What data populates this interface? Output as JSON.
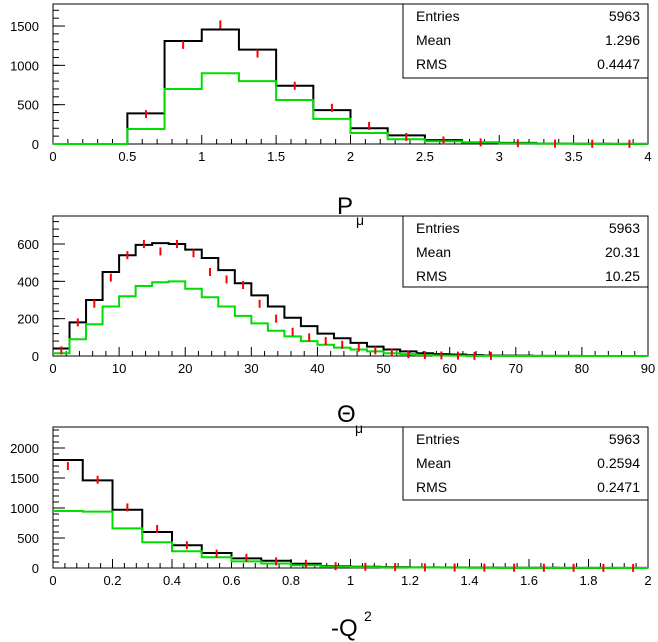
{
  "chart_data": [
    {
      "type": "histogram",
      "title": "",
      "xlabel": "P",
      "xlabel_sub": "μ",
      "xlabel_sup": "",
      "ylabel": "",
      "xlim": [
        0,
        4
      ],
      "ylim": [
        0,
        1780
      ],
      "xticks": [
        0,
        0.5,
        1,
        1.5,
        2,
        2.5,
        3,
        3.5,
        4
      ],
      "xtick_labels": [
        "0",
        "0.5",
        "1",
        "1.5",
        "2",
        "2.5",
        "3",
        "3.5",
        "4"
      ],
      "yticks": [
        0,
        500,
        1000,
        1500
      ],
      "ytick_labels": [
        "0",
        "500",
        "1000",
        "1500"
      ],
      "bin_edges": [
        0,
        0.25,
        0.5,
        0.75,
        1.0,
        1.25,
        1.5,
        1.75,
        2.0,
        2.25,
        2.5,
        2.75,
        3.0,
        3.25,
        3.5,
        3.75,
        4.0
      ],
      "series": [
        {
          "color": "#000000",
          "style": "step",
          "values": [
            0,
            0,
            390,
            1310,
            1455,
            1200,
            740,
            430,
            200,
            110,
            50,
            20,
            15,
            5,
            3,
            2
          ]
        },
        {
          "color": "#00dd00",
          "style": "step",
          "values": [
            0,
            0,
            190,
            700,
            900,
            800,
            560,
            320,
            140,
            60,
            35,
            20,
            10,
            5,
            2,
            1
          ]
        },
        {
          "color": "#ff0000",
          "style": "points",
          "values": [
            0,
            0,
            380,
            1260,
            1520,
            1150,
            740,
            460,
            230,
            90,
            45,
            20,
            10,
            5,
            3,
            2
          ]
        }
      ],
      "stats": {
        "entries_label": "Entries",
        "entries": "5963",
        "mean_label": "Mean",
        "mean": "1.296",
        "rms_label": "RMS",
        "rms": "0.4447"
      }
    },
    {
      "type": "histogram",
      "title": "",
      "xlabel": "Θ",
      "xlabel_sub": "μ",
      "xlabel_sup": "",
      "ylabel": "",
      "xlim": [
        0,
        90
      ],
      "ylim": [
        0,
        750
      ],
      "xticks": [
        0,
        10,
        20,
        30,
        40,
        50,
        60,
        70,
        80,
        90
      ],
      "xtick_labels": [
        "0",
        "10",
        "20",
        "30",
        "40",
        "50",
        "60",
        "70",
        "80",
        "90"
      ],
      "yticks": [
        0,
        200,
        400,
        600
      ],
      "ytick_labels": [
        "0",
        "200",
        "400",
        "600"
      ],
      "bin_edges": [
        0,
        2.5,
        5,
        7.5,
        10,
        12.5,
        15,
        17.5,
        20,
        22.5,
        25,
        27.5,
        30,
        32.5,
        35,
        37.5,
        40,
        42.5,
        45,
        47.5,
        50,
        52.5,
        55,
        57.5,
        60,
        62.5,
        65,
        67.5,
        70,
        72.5,
        75,
        77.5,
        80,
        82.5,
        85,
        87.5,
        90
      ],
      "series": [
        {
          "color": "#000000",
          "style": "step",
          "values": [
            40,
            180,
            300,
            450,
            540,
            595,
            605,
            600,
            570,
            525,
            460,
            390,
            325,
            265,
            205,
            160,
            120,
            95,
            70,
            50,
            35,
            25,
            15,
            10,
            8,
            5,
            3,
            2,
            2,
            1,
            1,
            1,
            0,
            0,
            0,
            0
          ]
        },
        {
          "color": "#00dd00",
          "style": "step",
          "values": [
            15,
            90,
            170,
            265,
            320,
            375,
            395,
            400,
            360,
            315,
            265,
            215,
            175,
            135,
            105,
            80,
            60,
            45,
            35,
            25,
            15,
            10,
            5,
            3,
            2,
            1,
            1,
            0,
            0,
            0,
            0,
            0,
            0,
            0,
            0,
            0
          ]
        },
        {
          "color": "#ff0000",
          "style": "points",
          "values": [
            30,
            180,
            280,
            420,
            540,
            600,
            560,
            600,
            550,
            450,
            410,
            380,
            280,
            200,
            130,
            100,
            80,
            60,
            45,
            30,
            20,
            10,
            5,
            3,
            2,
            1,
            1,
            0,
            0,
            0,
            0,
            0,
            0,
            0,
            0,
            0
          ]
        }
      ],
      "stats": {
        "entries_label": "Entries",
        "entries": "5963",
        "mean_label": "Mean",
        "mean": "20.31",
        "rms_label": "RMS",
        "rms": "10.25"
      }
    },
    {
      "type": "histogram",
      "title": "",
      "xlabel": "-Q",
      "xlabel_sub": "",
      "xlabel_sup": "2",
      "ylabel": "",
      "xlim": [
        0,
        2
      ],
      "ylim": [
        0,
        2350
      ],
      "xticks": [
        0,
        0.2,
        0.4,
        0.6,
        0.8,
        1,
        1.2,
        1.4,
        1.6,
        1.8,
        2
      ],
      "xtick_labels": [
        "0",
        "0.2",
        "0.4",
        "0.6",
        "0.8",
        "1",
        "1.2",
        "1.4",
        "1.6",
        "1.8",
        "2"
      ],
      "yticks": [
        0,
        500,
        1000,
        1500,
        2000
      ],
      "ytick_labels": [
        "0",
        "500",
        "1000",
        "1500",
        "2000"
      ],
      "bin_edges": [
        0,
        0.1,
        0.2,
        0.3,
        0.4,
        0.5,
        0.6,
        0.7,
        0.8,
        0.9,
        1.0,
        1.1,
        1.2,
        1.3,
        1.4,
        1.5,
        1.6,
        1.7,
        1.8,
        1.9,
        2.0
      ],
      "series": [
        {
          "color": "#000000",
          "style": "step",
          "values": [
            1800,
            1460,
            970,
            600,
            380,
            250,
            160,
            120,
            70,
            30,
            20,
            15,
            10,
            8,
            6,
            5,
            4,
            3,
            2,
            2
          ]
        },
        {
          "color": "#00dd00",
          "style": "step",
          "values": [
            950,
            940,
            660,
            430,
            280,
            180,
            110,
            75,
            45,
            20,
            15,
            10,
            8,
            6,
            5,
            4,
            3,
            2,
            2,
            1
          ]
        },
        {
          "color": "#ff0000",
          "style": "points",
          "values": [
            1700,
            1470,
            1010,
            650,
            380,
            240,
            170,
            110,
            70,
            30,
            20,
            15,
            10,
            8,
            6,
            5,
            4,
            3,
            2,
            2
          ]
        }
      ],
      "stats": {
        "entries_label": "Entries",
        "entries": "5963",
        "mean_label": "Mean",
        "mean": "0.2594",
        "rms_label": "RMS",
        "rms": "0.2471"
      }
    }
  ]
}
